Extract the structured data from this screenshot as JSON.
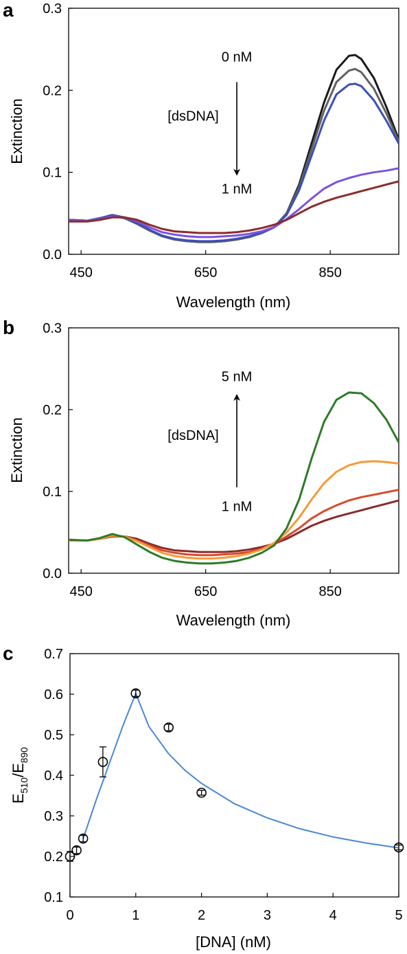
{
  "chart_data": [
    {
      "panel": "a",
      "type": "line",
      "xlabel": "Wavelength  (nm)",
      "ylabel": "Extinction",
      "xlim": [
        430,
        960
      ],
      "ylim": [
        0.0,
        0.3
      ],
      "xticks": [
        "450",
        "650",
        "850"
      ],
      "xtick_values": [
        450,
        650,
        850
      ],
      "yticks": [
        "0.0",
        "0.1",
        "0.2",
        "0.3"
      ],
      "ytick_values": [
        0.0,
        0.1,
        0.2,
        0.3
      ],
      "annotations": {
        "top": "0 nM",
        "middle": "[dsDNA]",
        "bottom": "1 nM",
        "arrow": "down"
      },
      "arrow_x": 700,
      "arrow_y": [
        0.21,
        0.1
      ],
      "annotation_positions": {
        "top": [
          700,
          0.235
        ],
        "middle": [
          630,
          0.163
        ],
        "bottom": [
          700,
          0.074
        ]
      },
      "x": [
        430,
        460,
        480,
        500,
        520,
        540,
        560,
        580,
        600,
        620,
        640,
        660,
        680,
        700,
        720,
        740,
        760,
        780,
        800,
        820,
        840,
        860,
        880,
        890,
        900,
        920,
        940,
        960
      ],
      "series": [
        {
          "color": "#1a1a1a",
          "values": [
            0.042,
            0.041,
            0.044,
            0.047,
            0.044,
            0.037,
            0.029,
            0.022,
            0.018,
            0.016,
            0.015,
            0.015,
            0.016,
            0.018,
            0.021,
            0.026,
            0.033,
            0.05,
            0.085,
            0.135,
            0.185,
            0.225,
            0.242,
            0.243,
            0.238,
            0.215,
            0.18,
            0.14
          ]
        },
        {
          "color": "#606060",
          "values": [
            0.042,
            0.041,
            0.044,
            0.047,
            0.044,
            0.037,
            0.029,
            0.022,
            0.018,
            0.016,
            0.015,
            0.015,
            0.016,
            0.018,
            0.021,
            0.026,
            0.033,
            0.05,
            0.082,
            0.128,
            0.175,
            0.21,
            0.224,
            0.226,
            0.222,
            0.202,
            0.172,
            0.138
          ]
        },
        {
          "color": "#3a4fb8",
          "values": [
            0.042,
            0.041,
            0.044,
            0.048,
            0.045,
            0.038,
            0.03,
            0.023,
            0.019,
            0.017,
            0.016,
            0.016,
            0.017,
            0.019,
            0.022,
            0.026,
            0.033,
            0.048,
            0.078,
            0.12,
            0.163,
            0.195,
            0.207,
            0.208,
            0.205,
            0.188,
            0.163,
            0.135
          ]
        },
        {
          "color": "#7a52e0",
          "values": [
            0.041,
            0.041,
            0.043,
            0.046,
            0.045,
            0.04,
            0.033,
            0.027,
            0.024,
            0.022,
            0.021,
            0.021,
            0.022,
            0.023,
            0.025,
            0.028,
            0.033,
            0.043,
            0.055,
            0.068,
            0.08,
            0.088,
            0.093,
            0.095,
            0.097,
            0.1,
            0.102,
            0.105
          ]
        },
        {
          "color": "#8e2a2a",
          "values": [
            0.04,
            0.04,
            0.042,
            0.045,
            0.045,
            0.042,
            0.036,
            0.031,
            0.028,
            0.027,
            0.026,
            0.026,
            0.026,
            0.027,
            0.029,
            0.032,
            0.036,
            0.042,
            0.05,
            0.058,
            0.064,
            0.069,
            0.073,
            0.075,
            0.077,
            0.081,
            0.085,
            0.089
          ]
        }
      ]
    },
    {
      "panel": "b",
      "type": "line",
      "xlabel": "Wavelength  (nm)",
      "ylabel": "Extinction",
      "xlim": [
        430,
        960
      ],
      "ylim": [
        0.0,
        0.3
      ],
      "xticks": [
        "450",
        "650",
        "850"
      ],
      "xtick_values": [
        450,
        650,
        850
      ],
      "yticks": [
        "0.0",
        "0.1",
        "0.2",
        "0.3"
      ],
      "ytick_values": [
        0.0,
        0.1,
        0.2,
        0.3
      ],
      "annotations": {
        "top": "5 nM",
        "middle": "[dsDNA]",
        "bottom": "1 nM",
        "arrow": "up"
      },
      "arrow_x": 700,
      "arrow_y": [
        0.105,
        0.215
      ],
      "annotation_positions": {
        "top": [
          700,
          0.235
        ],
        "middle": [
          630,
          0.163
        ],
        "bottom": [
          700,
          0.076
        ]
      },
      "x": [
        430,
        460,
        480,
        500,
        520,
        540,
        560,
        580,
        600,
        620,
        640,
        660,
        680,
        700,
        720,
        740,
        760,
        780,
        800,
        820,
        840,
        860,
        880,
        900,
        920,
        940,
        960
      ],
      "series": [
        {
          "color": "#8a2a2a",
          "values": [
            0.04,
            0.04,
            0.042,
            0.045,
            0.045,
            0.042,
            0.036,
            0.031,
            0.028,
            0.027,
            0.026,
            0.026,
            0.026,
            0.027,
            0.029,
            0.032,
            0.036,
            0.042,
            0.05,
            0.058,
            0.064,
            0.069,
            0.073,
            0.077,
            0.081,
            0.085,
            0.089
          ]
        },
        {
          "color": "#d84a2a",
          "values": [
            0.04,
            0.04,
            0.042,
            0.046,
            0.045,
            0.04,
            0.034,
            0.028,
            0.025,
            0.023,
            0.022,
            0.022,
            0.023,
            0.024,
            0.026,
            0.03,
            0.036,
            0.045,
            0.055,
            0.067,
            0.076,
            0.083,
            0.089,
            0.093,
            0.096,
            0.099,
            0.102
          ]
        },
        {
          "color": "#f59a38",
          "values": [
            0.04,
            0.04,
            0.042,
            0.046,
            0.045,
            0.039,
            0.032,
            0.025,
            0.021,
            0.019,
            0.018,
            0.018,
            0.019,
            0.021,
            0.024,
            0.029,
            0.037,
            0.05,
            0.068,
            0.09,
            0.11,
            0.124,
            0.132,
            0.136,
            0.137,
            0.136,
            0.134
          ]
        },
        {
          "color": "#2e7a28",
          "values": [
            0.041,
            0.04,
            0.043,
            0.048,
            0.044,
            0.035,
            0.026,
            0.019,
            0.015,
            0.013,
            0.012,
            0.012,
            0.013,
            0.015,
            0.019,
            0.025,
            0.034,
            0.055,
            0.09,
            0.14,
            0.185,
            0.212,
            0.221,
            0.22,
            0.208,
            0.188,
            0.16
          ]
        }
      ]
    },
    {
      "panel": "c",
      "type": "scatter",
      "xlabel": "[DNA] (nM)",
      "ylabel_main": "E",
      "ylabel_sub1": "510",
      "ylabel_sep": "/E",
      "ylabel_sub2": "890",
      "xlim": [
        0,
        5
      ],
      "ylim": [
        0.1,
        0.7
      ],
      "xticks": [
        "0",
        "1",
        "2",
        "3",
        "4",
        "5"
      ],
      "xtick_values": [
        0,
        1,
        2,
        3,
        4,
        5
      ],
      "yticks": [
        "0.1",
        "0.2",
        "0.3",
        "0.4",
        "0.5",
        "0.6",
        "0.7"
      ],
      "ytick_values": [
        0.1,
        0.2,
        0.3,
        0.4,
        0.5,
        0.6,
        0.7
      ],
      "points": [
        {
          "x": 0.0,
          "y": 0.2,
          "err": 0.012
        },
        {
          "x": 0.1,
          "y": 0.215,
          "err": 0.008
        },
        {
          "x": 0.2,
          "y": 0.244,
          "err": 0.008
        },
        {
          "x": 0.5,
          "y": 0.433,
          "err": 0.037
        },
        {
          "x": 1.0,
          "y": 0.602,
          "err": 0.008
        },
        {
          "x": 1.5,
          "y": 0.518,
          "err": 0.008
        },
        {
          "x": 2.0,
          "y": 0.357,
          "err": 0.006
        },
        {
          "x": 5.0,
          "y": 0.222,
          "err": 0.006
        }
      ],
      "fit_color": "#4a86d8",
      "fit": {
        "x": [
          0.2,
          0.4,
          0.6,
          0.8,
          1.0,
          1.2,
          1.5,
          1.75,
          2.0,
          2.5,
          3.0,
          3.5,
          4.0,
          4.5,
          5.0
        ],
        "y": [
          0.244,
          0.34,
          0.43,
          0.52,
          0.602,
          0.52,
          0.453,
          0.412,
          0.38,
          0.33,
          0.295,
          0.268,
          0.248,
          0.233,
          0.221
        ]
      }
    }
  ]
}
